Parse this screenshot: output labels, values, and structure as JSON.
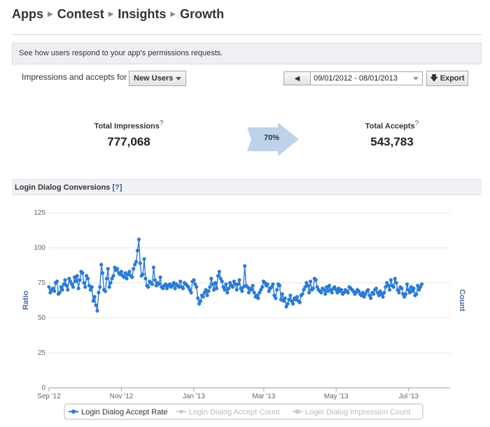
{
  "breadcrumb": [
    "Apps",
    "Contest",
    "Insights",
    "Growth"
  ],
  "info_text": "See how users respond to your app's permissions requests.",
  "filter": {
    "label": "Impressions and accepts for",
    "selected": "New Users"
  },
  "date_range": {
    "value": "09/01/2012 - 08/01/2013",
    "export_label": "Export"
  },
  "stats": {
    "impressions_label": "Total Impressions",
    "impressions_value": "777,068",
    "accepts_label": "Total Accepts",
    "accepts_value": "543,783",
    "help_mark": "?",
    "conversion": "70%"
  },
  "section": {
    "title": "Login Dialog Conversions",
    "help": "[?]"
  },
  "colors": {
    "series": "#2b7bd6",
    "grid": "#e3e3e3",
    "disabled": "#cccccc"
  },
  "chart_data": {
    "type": "line",
    "ylabel": "Ratio",
    "y2label": "Count",
    "ylim": [
      0,
      125
    ],
    "yticks": [
      0,
      25,
      50,
      75,
      100,
      125
    ],
    "xlim": [
      "2012-09-01",
      "2013-08-05"
    ],
    "xticks": [
      {
        "label": "Sep '12",
        "date": "2012-09-01"
      },
      {
        "label": "Nov '12",
        "date": "2012-11-01"
      },
      {
        "label": "Jan '13",
        "date": "2013-01-01"
      },
      {
        "label": "Mar '13",
        "date": "2013-03-01"
      },
      {
        "label": "May '13",
        "date": "2013-05-01"
      },
      {
        "label": "Jul '13",
        "date": "2013-07-01"
      }
    ],
    "start_date": "2012-09-01",
    "series": [
      {
        "name": "Login Dialog Accept Rate",
        "enabled": true,
        "values": [
          72,
          68,
          70,
          71,
          69,
          75,
          76,
          67,
          68,
          72,
          70,
          74,
          77,
          73,
          70,
          78,
          76,
          74,
          72,
          79,
          76,
          80,
          71,
          77,
          83,
          82,
          75,
          72,
          80,
          78,
          73,
          70,
          72,
          62,
          65,
          59,
          55,
          68,
          72,
          88,
          82,
          70,
          69,
          78,
          85,
          72,
          75,
          78,
          80,
          86,
          84,
          85,
          82,
          81,
          83,
          80,
          79,
          82,
          78,
          81,
          83,
          80,
          79,
          85,
          88,
          90,
          98,
          106,
          89,
          80,
          81,
          92,
          78,
          73,
          72,
          76,
          75,
          74,
          86,
          77,
          73,
          75,
          74,
          79,
          72,
          71,
          73,
          74,
          71,
          73,
          74,
          72,
          73,
          75,
          71,
          74,
          73,
          72,
          76,
          72,
          71,
          75,
          74,
          73,
          72,
          70,
          68,
          76,
          77,
          74,
          72,
          64,
          60,
          62,
          66,
          65,
          68,
          70,
          66,
          69,
          72,
          78,
          74,
          70,
          75,
          71,
          80,
          83,
          78,
          76,
          72,
          70,
          74,
          68,
          71,
          75,
          73,
          72,
          76,
          74,
          70,
          74,
          77,
          71,
          69,
          72,
          87,
          73,
          72,
          68,
          71,
          70,
          73,
          68,
          65,
          66,
          64,
          68,
          70,
          72,
          76,
          75,
          73,
          74,
          69,
          71,
          72,
          74,
          66,
          64,
          70,
          74,
          73,
          63,
          67,
          62,
          64,
          58,
          60,
          63,
          66,
          62,
          60,
          64,
          63,
          65,
          62,
          61,
          66,
          67,
          70,
          72,
          75,
          73,
          68,
          76,
          70,
          71,
          78,
          77,
          72,
          70,
          69,
          68,
          71,
          70,
          67,
          72,
          69,
          73,
          70,
          68,
          71,
          72,
          70,
          68,
          71,
          69,
          70,
          67,
          68,
          70,
          69,
          68,
          72,
          71,
          70,
          69,
          67,
          68,
          70,
          69,
          67,
          66,
          68,
          65,
          67,
          69,
          70,
          66,
          64,
          68,
          67,
          70,
          71,
          68,
          66,
          69,
          67,
          65,
          68,
          72,
          75,
          73,
          70,
          77,
          73,
          72,
          78,
          75,
          70,
          68,
          72,
          71,
          67,
          65,
          67,
          74,
          70,
          68,
          72,
          69,
          71,
          66,
          67,
          73,
          70,
          72,
          74
        ]
      },
      {
        "name": "Login Dialog Accept Count",
        "enabled": false
      },
      {
        "name": "Login Dialog Impression Count",
        "enabled": false
      }
    ]
  }
}
